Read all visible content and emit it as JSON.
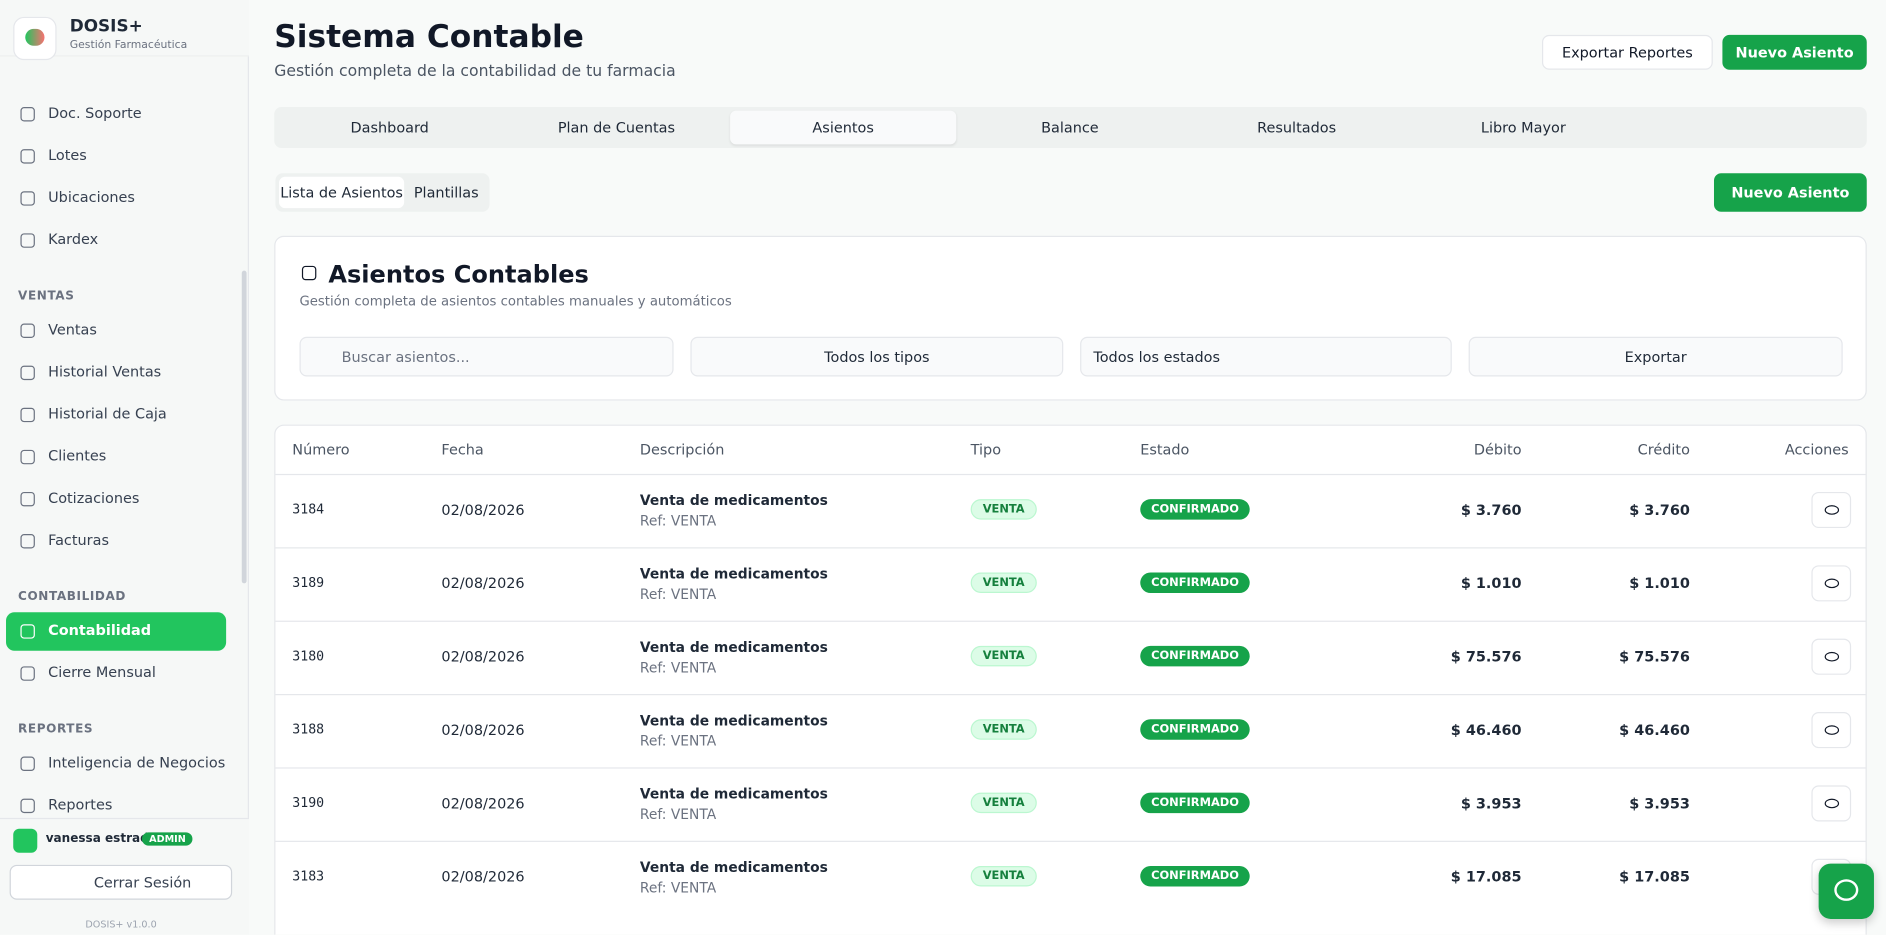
{
  "brand": {
    "name": "DOSIS+",
    "tagline": "Gestión Farmacéutica"
  },
  "sidebar": {
    "groups": [
      {
        "items": [
          "Doc. Soporte",
          "Lotes",
          "Ubicaciones",
          "Kardex"
        ]
      },
      {
        "title": "VENTAS",
        "items": [
          "Ventas",
          "Historial Ventas",
          "Historial de Caja",
          "Clientes",
          "Cotizaciones",
          "Facturas"
        ]
      },
      {
        "title": "CONTABILIDAD",
        "items": [
          "Contabilidad",
          "Cierre Mensual"
        ]
      },
      {
        "title": "REPORTES",
        "items": [
          "Inteligencia de Negocios",
          "Reportes"
        ]
      }
    ]
  },
  "user": {
    "name": "vanessa estrada",
    "role": "ADMIN"
  },
  "logout": "Cerrar Sesión",
  "version": "DOSIS+ v1.0.0",
  "header": {
    "title": "Sistema Contable",
    "subtitle": "Gestión completa de la contabilidad de tu farmacia",
    "actions": [
      "Exportar Reportes",
      "Nuevo Asiento"
    ]
  },
  "tabs": [
    "Dashboard",
    "Plan de Cuentas",
    "Asientos",
    "Balance",
    "Resultados",
    "Libro Mayor"
  ],
  "subtabs": [
    "Lista de Asientos",
    "Plantillas"
  ],
  "subtab_action": "Nuevo Asiento",
  "card": {
    "title": "Asientos Contables",
    "subtitle": "Gestión completa de asientos contables manuales y automáticos",
    "search_placeholder": "Buscar asientos...",
    "type_filter": "Todos los tipos",
    "status_filter": "Todos los estados",
    "export": "Exportar"
  },
  "table": {
    "columns": [
      "Número",
      "Fecha",
      "Descripción",
      "Tipo",
      "Estado",
      "Débito",
      "Crédito",
      "Acciones"
    ],
    "rows": [
      [
        "3184",
        "02/08/2026",
        "Venta de medicamentos",
        "Ref: VENTA",
        "VENTA",
        "CONFIRMADO",
        "$ 3.760",
        "$ 3.760"
      ],
      [
        "3189",
        "02/08/2026",
        "Venta de medicamentos",
        "Ref: VENTA",
        "VENTA",
        "CONFIRMADO",
        "$ 1.010",
        "$ 1.010"
      ],
      [
        "3180",
        "02/08/2026",
        "Venta de medicamentos",
        "Ref: VENTA",
        "VENTA",
        "CONFIRMADO",
        "$ 75.576",
        "$ 75.576"
      ],
      [
        "3188",
        "02/08/2026",
        "Venta de medicamentos",
        "Ref: VENTA",
        "VENTA",
        "CONFIRMADO",
        "$ 46.460",
        "$ 46.460"
      ],
      [
        "3190",
        "02/08/2026",
        "Venta de medicamentos",
        "Ref: VENTA",
        "VENTA",
        "CONFIRMADO",
        "$ 3.953",
        "$ 3.953"
      ],
      [
        "3183",
        "02/08/2026",
        "Venta de medicamentos",
        "Ref: VENTA",
        "VENTA",
        "CONFIRMADO",
        "$ 17.085",
        "$ 17.085"
      ]
    ]
  }
}
